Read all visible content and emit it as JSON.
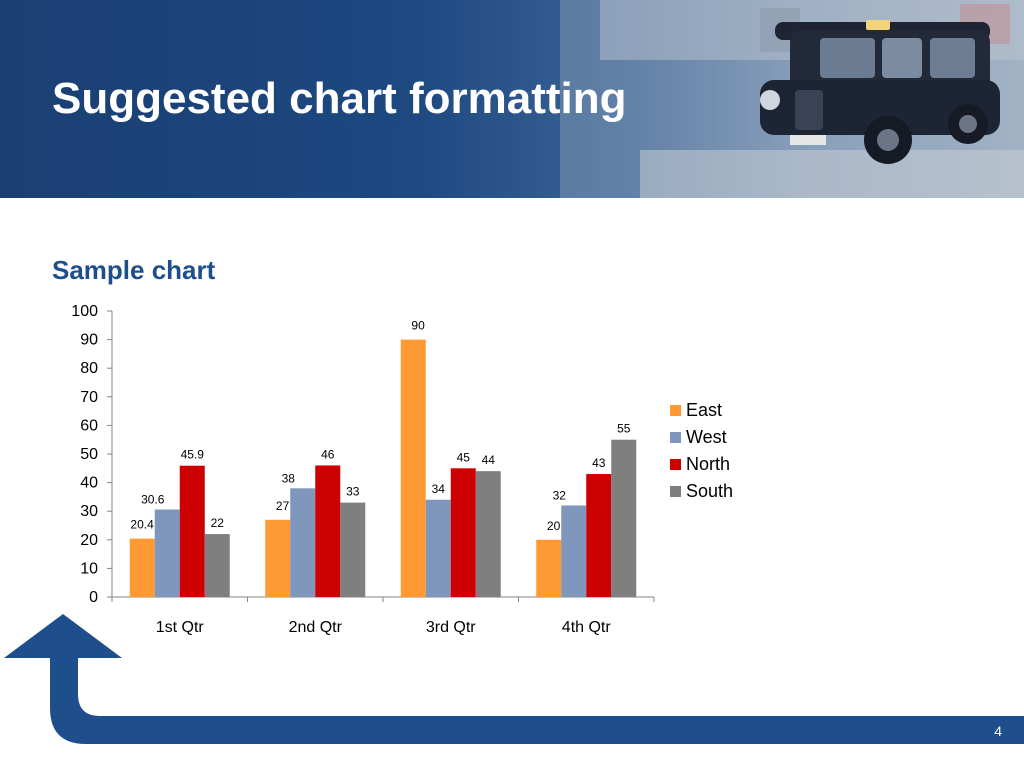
{
  "slide": {
    "title": "Suggested chart formatting",
    "page_number": "4"
  },
  "colors": {
    "banner": "#1d4880",
    "heading": "#1f4e8c",
    "footer": "#1f4e8c"
  },
  "chart_data": {
    "type": "bar",
    "title": "Sample chart",
    "categories": [
      "1st Qtr",
      "2nd Qtr",
      "3rd Qtr",
      "4th Qtr"
    ],
    "series": [
      {
        "name": "East",
        "color": "#ff9933",
        "values": [
          20.4,
          27,
          90,
          20
        ]
      },
      {
        "name": "West",
        "color": "#7f96bd",
        "values": [
          30.6,
          38,
          34,
          32
        ]
      },
      {
        "name": "North",
        "color": "#cc0000",
        "values": [
          45.9,
          46,
          45,
          43
        ]
      },
      {
        "name": "South",
        "color": "#7f7f7f",
        "values": [
          22,
          33,
          44,
          55
        ]
      }
    ],
    "ylim": [
      0,
      100
    ],
    "yticks": [
      0,
      10,
      20,
      30,
      40,
      50,
      60,
      70,
      80,
      90,
      100
    ],
    "xlabel": "",
    "ylabel": "",
    "grid": false,
    "data_labels": true,
    "legend": "right"
  }
}
